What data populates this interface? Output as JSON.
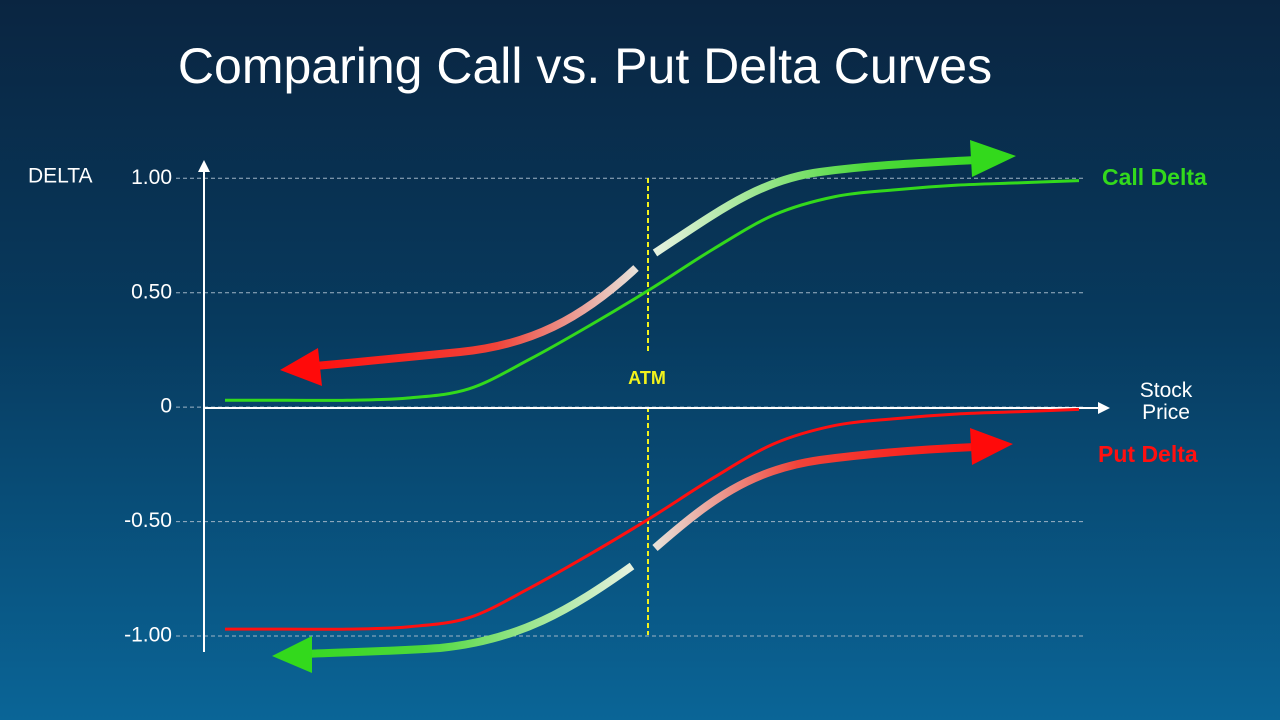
{
  "chart_data": {
    "type": "line",
    "title": "Comparing Call vs. Put Delta Curves",
    "y_label": "DELTA",
    "x_label": "Stock Price",
    "annotation": "ATM",
    "categories": [
      null,
      null,
      null,
      null,
      null,
      null,
      null,
      null,
      null,
      null,
      null,
      null,
      null,
      null,
      null
    ],
    "series": [
      {
        "name": "Call Delta",
        "color": "#33d91c",
        "values": [
          0.03,
          0.03,
          0.03,
          0.04,
          0.08,
          0.21,
          0.36,
          0.52,
          0.69,
          0.84,
          0.92,
          0.95,
          0.97,
          0.98,
          0.99
        ]
      },
      {
        "name": "Put Delta",
        "color": "#ff1010",
        "values": [
          -0.97,
          -0.97,
          -0.97,
          -0.96,
          -0.92,
          -0.79,
          -0.64,
          -0.48,
          -0.31,
          -0.16,
          -0.08,
          -0.05,
          -0.03,
          -0.02,
          -0.01
        ]
      }
    ],
    "ylim": [
      -1.07,
      1.08
    ],
    "yticks": [
      {
        "value": 1,
        "label": "1.00"
      },
      {
        "value": 0.5,
        "label": "0.50"
      },
      0,
      {
        "value": -0.5,
        "label": "-0.50"
      },
      {
        "value": -1,
        "label": "-1.00"
      }
    ],
    "grid": true
  }
}
